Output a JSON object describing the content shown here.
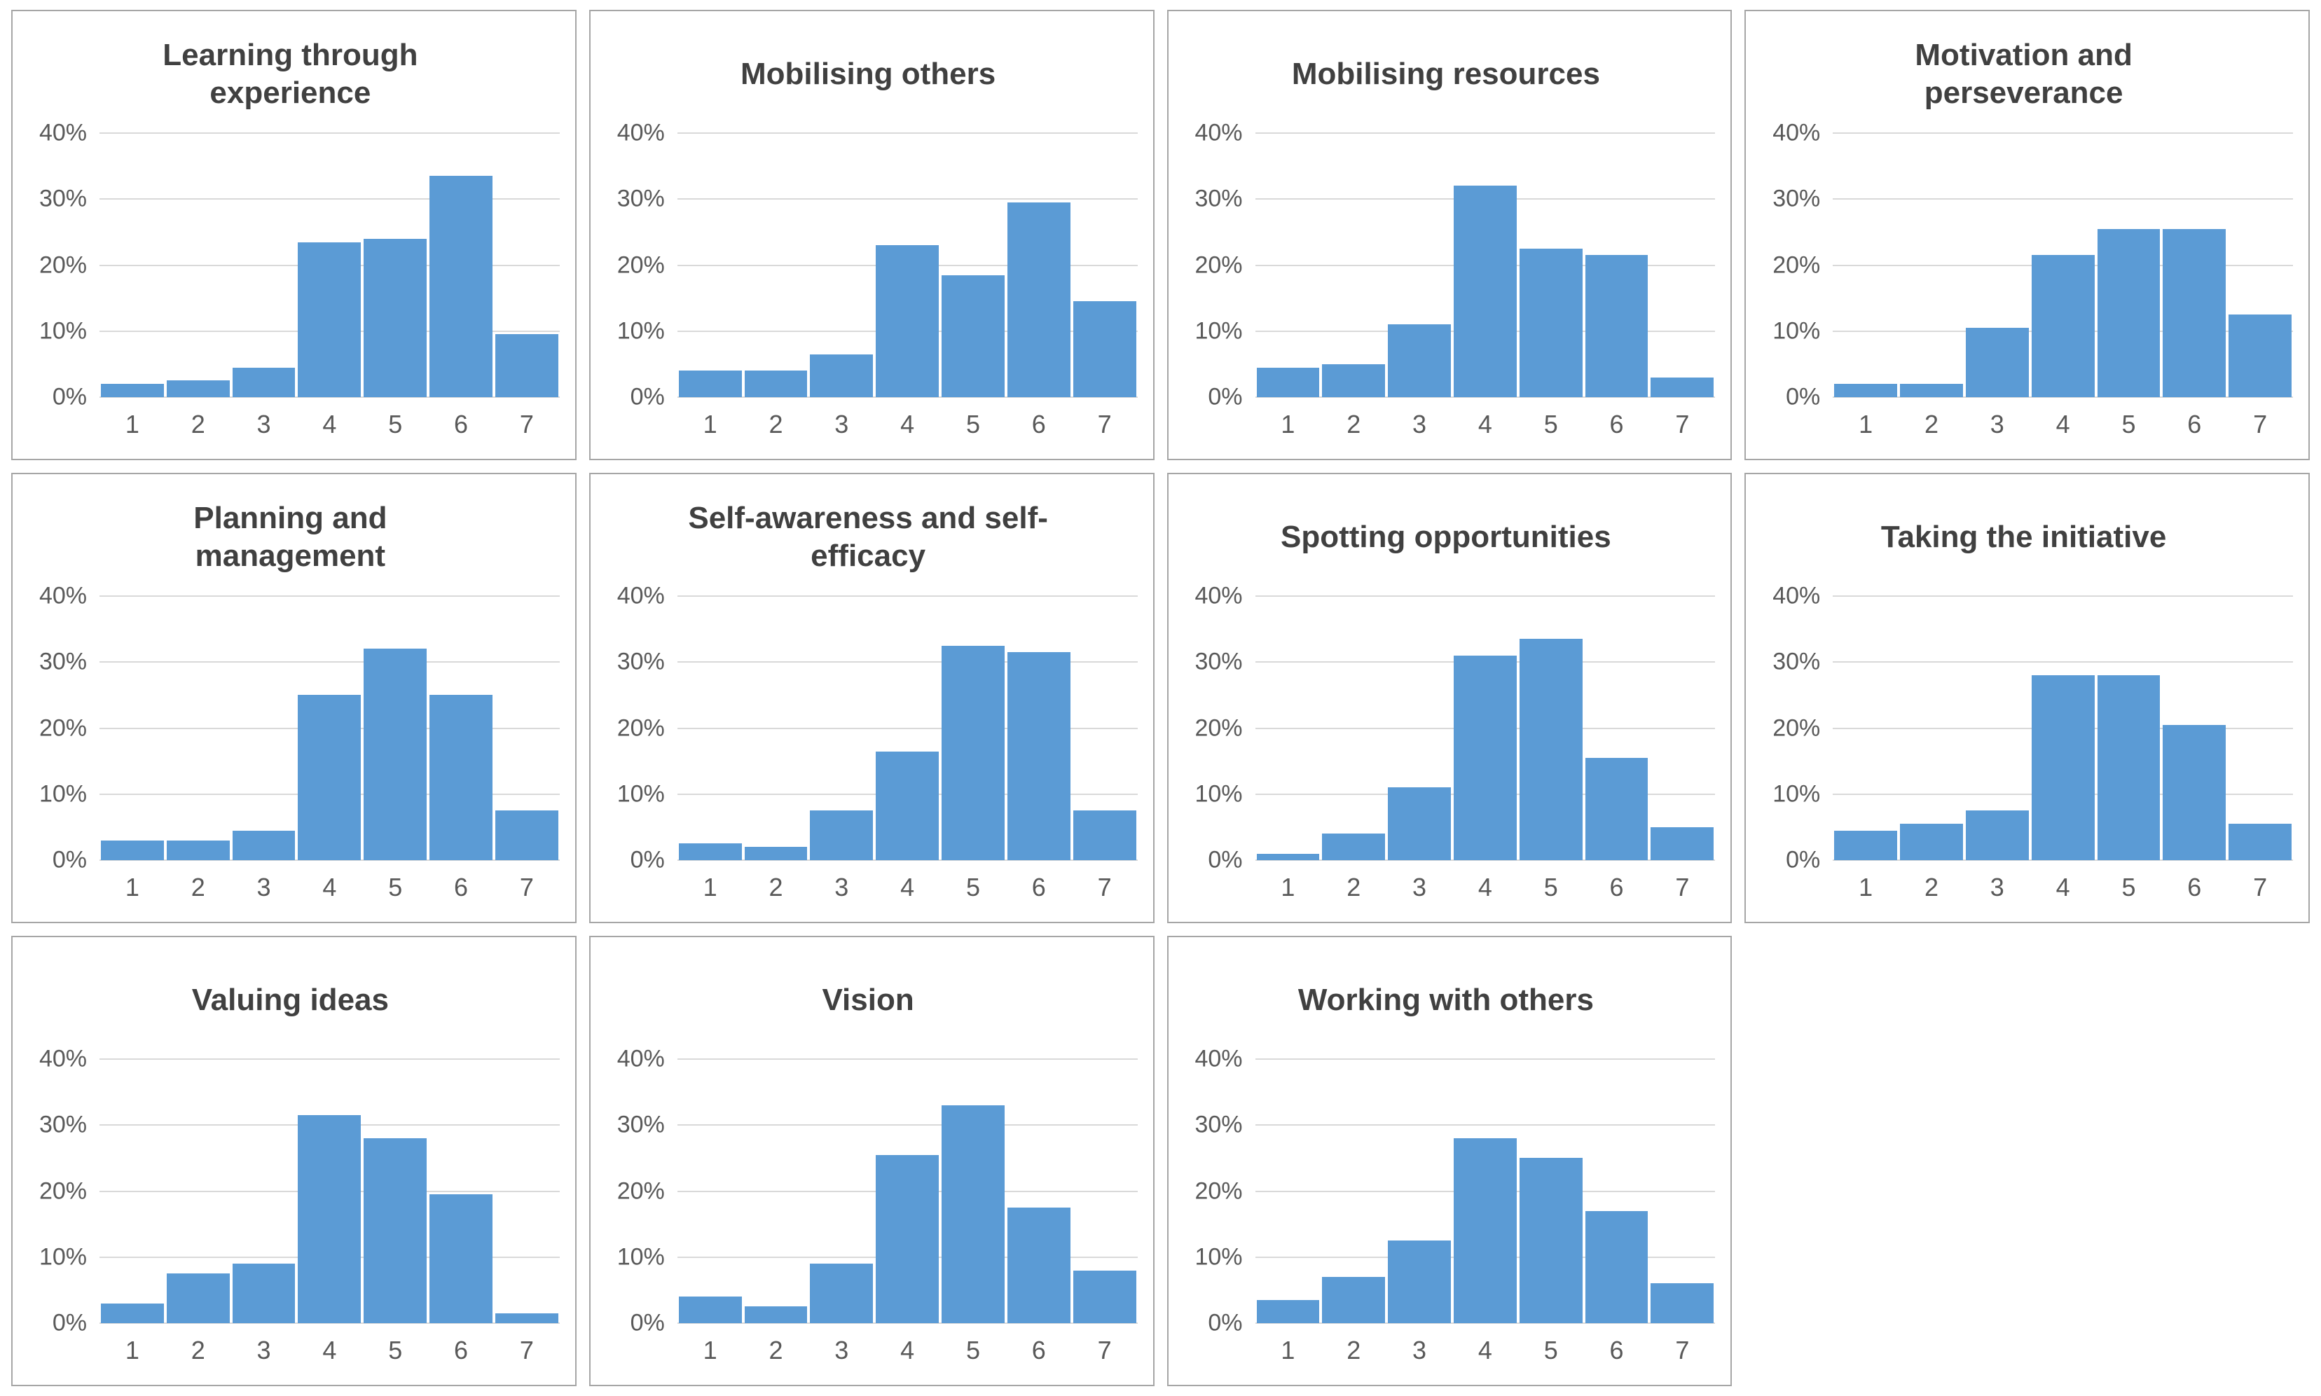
{
  "page": {
    "background": "#ffffff",
    "description_colors": {
      "bar_fill": "#5b9bd5",
      "title_text": "#404040",
      "axis_label_text": "#595959",
      "gridline": "#d9d9d9",
      "panel_border": "#a6a6a6"
    }
  },
  "chart_data": [
    {
      "type": "bar",
      "title": "Learning through experience",
      "title_lines": [
        "Learning through",
        "experience"
      ],
      "categories": [
        "1",
        "2",
        "3",
        "4",
        "5",
        "6",
        "7"
      ],
      "values": [
        2,
        2.5,
        4.5,
        23.5,
        24,
        33.5,
        9.5
      ],
      "xlabel": "",
      "ylabel": "",
      "ylim": [
        0,
        40
      ],
      "y_ticks": [
        "0%",
        "10%",
        "20%",
        "30%",
        "40%"
      ],
      "grid": true,
      "legend": false
    },
    {
      "type": "bar",
      "title": "Mobilising others",
      "title_lines": [
        "Mobilising others"
      ],
      "categories": [
        "1",
        "2",
        "3",
        "4",
        "5",
        "6",
        "7"
      ],
      "values": [
        4,
        4,
        6.5,
        23,
        18.5,
        29.5,
        14.5
      ],
      "xlabel": "",
      "ylabel": "",
      "ylim": [
        0,
        40
      ],
      "y_ticks": [
        "0%",
        "10%",
        "20%",
        "30%",
        "40%"
      ],
      "grid": true,
      "legend": false
    },
    {
      "type": "bar",
      "title": "Mobilising resources",
      "title_lines": [
        "Mobilising resources"
      ],
      "categories": [
        "1",
        "2",
        "3",
        "4",
        "5",
        "6",
        "7"
      ],
      "values": [
        4.5,
        5,
        11,
        32,
        22.5,
        21.5,
        3
      ],
      "xlabel": "",
      "ylabel": "",
      "ylim": [
        0,
        40
      ],
      "y_ticks": [
        "0%",
        "10%",
        "20%",
        "30%",
        "40%"
      ],
      "grid": true,
      "legend": false
    },
    {
      "type": "bar",
      "title": "Motivation and perseverance",
      "title_lines": [
        "Motivation and",
        "perseverance"
      ],
      "categories": [
        "1",
        "2",
        "3",
        "4",
        "5",
        "6",
        "7"
      ],
      "values": [
        2,
        2,
        10.5,
        21.5,
        25.5,
        25.5,
        12.5
      ],
      "xlabel": "",
      "ylabel": "",
      "ylim": [
        0,
        40
      ],
      "y_ticks": [
        "0%",
        "10%",
        "20%",
        "30%",
        "40%"
      ],
      "grid": true,
      "legend": false
    },
    {
      "type": "bar",
      "title": "Planning and management",
      "title_lines": [
        "Planning and",
        "management"
      ],
      "categories": [
        "1",
        "2",
        "3",
        "4",
        "5",
        "6",
        "7"
      ],
      "values": [
        3,
        3,
        4.5,
        25,
        32,
        25,
        7.5
      ],
      "xlabel": "",
      "ylabel": "",
      "ylim": [
        0,
        40
      ],
      "y_ticks": [
        "0%",
        "10%",
        "20%",
        "30%",
        "40%"
      ],
      "grid": true,
      "legend": false
    },
    {
      "type": "bar",
      "title": "Self-awareness and self-efficacy",
      "title_lines": [
        "Self-awareness and self-",
        "efficacy"
      ],
      "categories": [
        "1",
        "2",
        "3",
        "4",
        "5",
        "6",
        "7"
      ],
      "values": [
        2.5,
        2,
        7.5,
        16.5,
        32.5,
        31.5,
        7.5
      ],
      "xlabel": "",
      "ylabel": "",
      "ylim": [
        0,
        40
      ],
      "y_ticks": [
        "0%",
        "10%",
        "20%",
        "30%",
        "40%"
      ],
      "grid": true,
      "legend": false
    },
    {
      "type": "bar",
      "title": "Spotting opportunities",
      "title_lines": [
        "Spotting opportunities"
      ],
      "categories": [
        "1",
        "2",
        "3",
        "4",
        "5",
        "6",
        "7"
      ],
      "values": [
        1,
        4,
        11,
        31,
        33.5,
        15.5,
        5
      ],
      "xlabel": "",
      "ylabel": "",
      "ylim": [
        0,
        40
      ],
      "y_ticks": [
        "0%",
        "10%",
        "20%",
        "30%",
        "40%"
      ],
      "grid": true,
      "legend": false
    },
    {
      "type": "bar",
      "title": "Taking the initiative",
      "title_lines": [
        "Taking the initiative"
      ],
      "categories": [
        "1",
        "2",
        "3",
        "4",
        "5",
        "6",
        "7"
      ],
      "values": [
        4.5,
        5.5,
        7.5,
        28,
        28,
        20.5,
        5.5
      ],
      "xlabel": "",
      "ylabel": "",
      "ylim": [
        0,
        40
      ],
      "y_ticks": [
        "0%",
        "10%",
        "20%",
        "30%",
        "40%"
      ],
      "grid": true,
      "legend": false
    },
    {
      "type": "bar",
      "title": "Valuing ideas",
      "title_lines": [
        "Valuing ideas"
      ],
      "categories": [
        "1",
        "2",
        "3",
        "4",
        "5",
        "6",
        "7"
      ],
      "values": [
        3,
        7.5,
        9,
        31.5,
        28,
        19.5,
        1.5
      ],
      "xlabel": "",
      "ylabel": "",
      "ylim": [
        0,
        40
      ],
      "y_ticks": [
        "0%",
        "10%",
        "20%",
        "30%",
        "40%"
      ],
      "grid": true,
      "legend": false
    },
    {
      "type": "bar",
      "title": "Vision",
      "title_lines": [
        "Vision"
      ],
      "categories": [
        "1",
        "2",
        "3",
        "4",
        "5",
        "6",
        "7"
      ],
      "values": [
        4,
        2.5,
        9,
        25.5,
        33,
        17.5,
        8
      ],
      "xlabel": "",
      "ylabel": "",
      "ylim": [
        0,
        40
      ],
      "y_ticks": [
        "0%",
        "10%",
        "20%",
        "30%",
        "40%"
      ],
      "grid": true,
      "legend": false
    },
    {
      "type": "bar",
      "title": "Working with others",
      "title_lines": [
        "Working with others"
      ],
      "categories": [
        "1",
        "2",
        "3",
        "4",
        "5",
        "6",
        "7"
      ],
      "values": [
        3.5,
        7,
        12.5,
        28,
        25,
        17,
        6
      ],
      "xlabel": "",
      "ylabel": "",
      "ylim": [
        0,
        40
      ],
      "y_ticks": [
        "0%",
        "10%",
        "20%",
        "30%",
        "40%"
      ],
      "grid": true,
      "legend": false
    }
  ]
}
